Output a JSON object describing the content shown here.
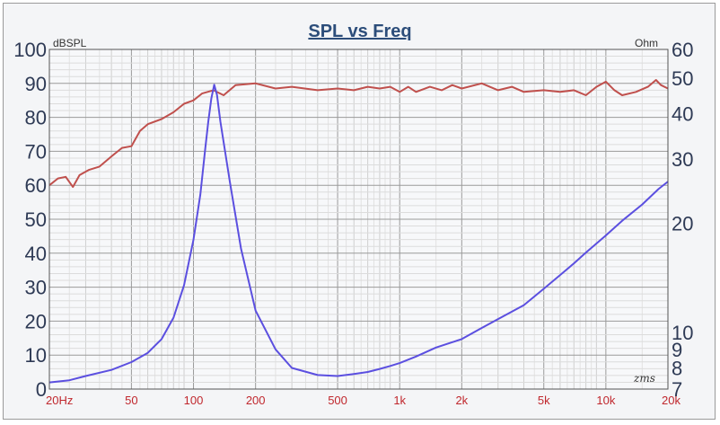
{
  "chart_data": {
    "type": "line",
    "title": "SPL vs Freq",
    "left_axis_label": "dBSPL",
    "right_axis_label": "Ohm",
    "x_scale": "log",
    "x_range": [
      20,
      20000
    ],
    "x_ticks": [
      {
        "value": 20,
        "label": "20Hz"
      },
      {
        "value": 50,
        "label": "50"
      },
      {
        "value": 100,
        "label": "100"
      },
      {
        "value": 200,
        "label": "200"
      },
      {
        "value": 500,
        "label": "500"
      },
      {
        "value": 1000,
        "label": "1k"
      },
      {
        "value": 2000,
        "label": "2k"
      },
      {
        "value": 5000,
        "label": "5k"
      },
      {
        "value": 10000,
        "label": "10k"
      },
      {
        "value": 20000,
        "label": "20k"
      }
    ],
    "y_left_range": [
      0,
      100
    ],
    "y_left_ticks": [
      0,
      10,
      20,
      30,
      40,
      50,
      60,
      70,
      80,
      90,
      100
    ],
    "y_right_scale": "log",
    "y_right_range": [
      7,
      60
    ],
    "y_right_ticks": [
      {
        "value": 7,
        "label": "7"
      },
      {
        "value": 8,
        "label": "8"
      },
      {
        "value": 9,
        "label": "9"
      },
      {
        "value": 10,
        "label": "10"
      },
      {
        "value": 20,
        "label": "20"
      },
      {
        "value": 30,
        "label": "30"
      },
      {
        "value": 40,
        "label": "40"
      },
      {
        "value": 50,
        "label": "50"
      },
      {
        "value": 60,
        "label": "60"
      }
    ],
    "grid": true,
    "watermark": "zms",
    "series": [
      {
        "axis": "left",
        "color": "#c0504d",
        "points": [
          [
            20,
            60
          ],
          [
            22,
            62
          ],
          [
            24,
            62.5
          ],
          [
            26,
            59.5
          ],
          [
            28,
            63
          ],
          [
            31,
            64.5
          ],
          [
            35,
            65.5
          ],
          [
            40,
            68.5
          ],
          [
            45,
            71
          ],
          [
            50,
            71.5
          ],
          [
            55,
            76
          ],
          [
            60,
            78
          ],
          [
            70,
            79.5
          ],
          [
            80,
            81.5
          ],
          [
            90,
            84
          ],
          [
            100,
            85
          ],
          [
            110,
            87
          ],
          [
            125,
            88
          ],
          [
            140,
            86.5
          ],
          [
            160,
            89.5
          ],
          [
            200,
            90
          ],
          [
            250,
            88.5
          ],
          [
            300,
            89
          ],
          [
            400,
            88
          ],
          [
            500,
            88.5
          ],
          [
            600,
            88
          ],
          [
            700,
            89
          ],
          [
            800,
            88.5
          ],
          [
            900,
            89
          ],
          [
            1000,
            87.5
          ],
          [
            1100,
            89
          ],
          [
            1200,
            87.5
          ],
          [
            1400,
            89
          ],
          [
            1600,
            88
          ],
          [
            1800,
            89.5
          ],
          [
            2000,
            88.5
          ],
          [
            2500,
            90
          ],
          [
            3000,
            88
          ],
          [
            3500,
            89
          ],
          [
            4000,
            87.5
          ],
          [
            5000,
            88
          ],
          [
            6000,
            87.5
          ],
          [
            7000,
            88
          ],
          [
            8000,
            86.5
          ],
          [
            9000,
            89
          ],
          [
            10000,
            90.5
          ],
          [
            11000,
            88
          ],
          [
            12000,
            86.5
          ],
          [
            14000,
            87.5
          ],
          [
            16000,
            89
          ],
          [
            17500,
            91
          ],
          [
            18500,
            89.5
          ],
          [
            20000,
            88.5
          ]
        ]
      },
      {
        "axis": "right",
        "color": "#5b4fe0",
        "points": [
          [
            20,
            7.3
          ],
          [
            25,
            7.4
          ],
          [
            30,
            7.6
          ],
          [
            40,
            7.9
          ],
          [
            50,
            8.3
          ],
          [
            60,
            8.8
          ],
          [
            70,
            9.6
          ],
          [
            80,
            11
          ],
          [
            90,
            13.5
          ],
          [
            100,
            18
          ],
          [
            108,
            24
          ],
          [
            114,
            32
          ],
          [
            118,
            38
          ],
          [
            122,
            44
          ],
          [
            126,
            48
          ],
          [
            130,
            45
          ],
          [
            135,
            38
          ],
          [
            150,
            26
          ],
          [
            170,
            17
          ],
          [
            200,
            11.5
          ],
          [
            250,
            9
          ],
          [
            300,
            8
          ],
          [
            400,
            7.65
          ],
          [
            500,
            7.6
          ],
          [
            600,
            7.7
          ],
          [
            700,
            7.8
          ],
          [
            800,
            7.95
          ],
          [
            900,
            8.1
          ],
          [
            1000,
            8.25
          ],
          [
            1200,
            8.6
          ],
          [
            1500,
            9.1
          ],
          [
            2000,
            9.6
          ],
          [
            2500,
            10.3
          ],
          [
            3000,
            10.9
          ],
          [
            4000,
            11.9
          ],
          [
            5000,
            13.2
          ],
          [
            6000,
            14.4
          ],
          [
            7000,
            15.5
          ],
          [
            8000,
            16.6
          ],
          [
            10000,
            18.5
          ],
          [
            12000,
            20.3
          ],
          [
            15000,
            22.5
          ],
          [
            18000,
            24.8
          ],
          [
            20000,
            26
          ]
        ]
      }
    ]
  }
}
